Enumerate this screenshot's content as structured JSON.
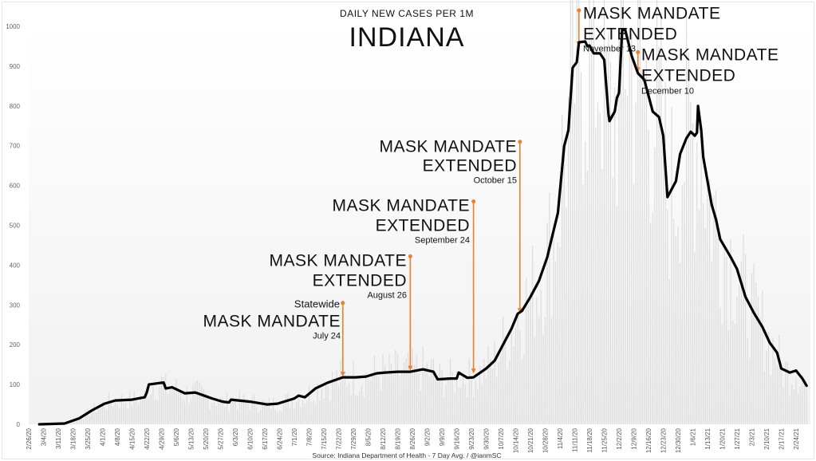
{
  "chart_data": {
    "type": "line",
    "title": "DAILY NEW CASES PER 1M",
    "subtitle": "INDIANA",
    "source": "Source: Indiana Department of Health - 7 Day Avg. / @ianmSC",
    "xlabel": "",
    "ylabel": "",
    "x_units": "days since 2/26/20",
    "ylim": [
      0,
      1000
    ],
    "yticks": [
      0,
      100,
      200,
      300,
      400,
      500,
      600,
      700,
      800,
      900,
      1000
    ],
    "xtick_labels": [
      "2/26/20",
      "3/4/20",
      "3/11/20",
      "3/18/20",
      "3/25/20",
      "4/1/20",
      "4/8/20",
      "4/15/20",
      "4/22/20",
      "4/29/20",
      "5/6/20",
      "5/13/20",
      "5/20/20",
      "5/27/20",
      "6/3/20",
      "6/10/20",
      "6/17/20",
      "6/24/20",
      "7/1/20",
      "7/8/20",
      "7/15/20",
      "7/22/20",
      "7/29/20",
      "8/5/20",
      "8/12/20",
      "8/19/20",
      "8/26/20",
      "9/2/20",
      "9/9/20",
      "9/16/20",
      "9/23/20",
      "9/30/20",
      "10/7/20",
      "10/14/20",
      "10/21/20",
      "10/28/20",
      "11/4/20",
      "11/11/20",
      "11/18/20",
      "11/25/20",
      "12/2/20",
      "12/9/20",
      "12/16/20",
      "12/23/20",
      "12/30/20",
      "1/6/21",
      "1/13/21",
      "1/20/21",
      "1/27/21",
      "2/3/21",
      "2/10/21",
      "2/17/21",
      "2/24/21"
    ],
    "series": [
      {
        "name": "7 Day Avg.",
        "points": [
          [
            5,
            0
          ],
          [
            17,
            2
          ],
          [
            24,
            15
          ],
          [
            30,
            35
          ],
          [
            36,
            52
          ],
          [
            41,
            60
          ],
          [
            49,
            62
          ],
          [
            55,
            68
          ],
          [
            56,
            80
          ],
          [
            57,
            100
          ],
          [
            64,
            105
          ],
          [
            65,
            90
          ],
          [
            68,
            93
          ],
          [
            74,
            78
          ],
          [
            79,
            80
          ],
          [
            87,
            65
          ],
          [
            92,
            57
          ],
          [
            95,
            55
          ],
          [
            96,
            62
          ],
          [
            105,
            57
          ],
          [
            113,
            50
          ],
          [
            118,
            52
          ],
          [
            126,
            65
          ],
          [
            128,
            72
          ],
          [
            131,
            68
          ],
          [
            136,
            90
          ],
          [
            142,
            105
          ],
          [
            149,
            118
          ],
          [
            155,
            118
          ],
          [
            160,
            120
          ],
          [
            165,
            128
          ],
          [
            169,
            130
          ],
          [
            175,
            132
          ],
          [
            181,
            132
          ],
          [
            187,
            138
          ],
          [
            192,
            132
          ],
          [
            194,
            113
          ],
          [
            200,
            115
          ],
          [
            203,
            115
          ],
          [
            204,
            130
          ],
          [
            208,
            117
          ],
          [
            211,
            118
          ],
          [
            217,
            140
          ],
          [
            221,
            160
          ],
          [
            225,
            200
          ],
          [
            229,
            240
          ],
          [
            232,
            278
          ],
          [
            234,
            285
          ],
          [
            238,
            320
          ],
          [
            242,
            360
          ],
          [
            246,
            420
          ],
          [
            248,
            465
          ],
          [
            251,
            531
          ],
          [
            254,
            699
          ],
          [
            256,
            739
          ],
          [
            258,
            896
          ],
          [
            260,
            910
          ],
          [
            261,
            960
          ],
          [
            264,
            962
          ],
          [
            265,
            950
          ],
          [
            266,
            952
          ],
          [
            268,
            932
          ],
          [
            271,
            932
          ],
          [
            273,
            916
          ],
          [
            275,
            780
          ],
          [
            275.5,
            762
          ],
          [
            278,
            786
          ],
          [
            279,
            820
          ],
          [
            280,
            832
          ],
          [
            281.5,
            992
          ],
          [
            283,
            990
          ],
          [
            286,
            926
          ],
          [
            289,
            882
          ],
          [
            292,
            866
          ],
          [
            296,
            786
          ],
          [
            299,
            772
          ],
          [
            301,
            725
          ],
          [
            303,
            571
          ],
          [
            307,
            611
          ],
          [
            309,
            679
          ],
          [
            312,
            719
          ],
          [
            314,
            735
          ],
          [
            316,
            725
          ],
          [
            317,
            733
          ],
          [
            317.5,
            800
          ],
          [
            319,
            739
          ],
          [
            320,
            671
          ],
          [
            324,
            551
          ],
          [
            326,
            515
          ],
          [
            328,
            465
          ],
          [
            333,
            420
          ],
          [
            336,
            390
          ],
          [
            340,
            320
          ],
          [
            344,
            280
          ],
          [
            348,
            245
          ],
          [
            351.5,
            205
          ],
          [
            355,
            180
          ],
          [
            357,
            140
          ],
          [
            361,
            130
          ],
          [
            364,
            135
          ],
          [
            367,
            115
          ],
          [
            369,
            97
          ]
        ]
      }
    ],
    "annotations": [
      {
        "pre": "Statewide",
        "lines": [
          "MASK MANDATE"
        ],
        "date": "July 24",
        "day": 149,
        "top": 305,
        "bottom": 120
      },
      {
        "lines": [
          "MASK MANDATE",
          "EXTENDED"
        ],
        "date": "August 26",
        "day": 181,
        "top": 422,
        "bottom": 135
      },
      {
        "lines": [
          "MASK MANDATE",
          "EXTENDED"
        ],
        "date": "September 24",
        "day": 211,
        "top": 560,
        "bottom": 128
      },
      {
        "lines": [
          "MASK MANDATE",
          "EXTENDED"
        ],
        "date": "October 15",
        "day": 233,
        "top": 710,
        "bottom": 280
      },
      {
        "lines": [
          "MASK MANDATE",
          "EXTENDED"
        ],
        "date": "November 13",
        "day": 261,
        "top": 1040,
        "bottom": 950
      },
      {
        "lines": [
          "MASK MANDATE",
          "EXTENDED"
        ],
        "date": "December 10",
        "day": 289,
        "top": 935,
        "bottom": 885
      }
    ],
    "colors": {
      "line": "#000000",
      "annotation": "#f07f2a",
      "bars": "#dcdcdc",
      "text": "#111111"
    }
  }
}
